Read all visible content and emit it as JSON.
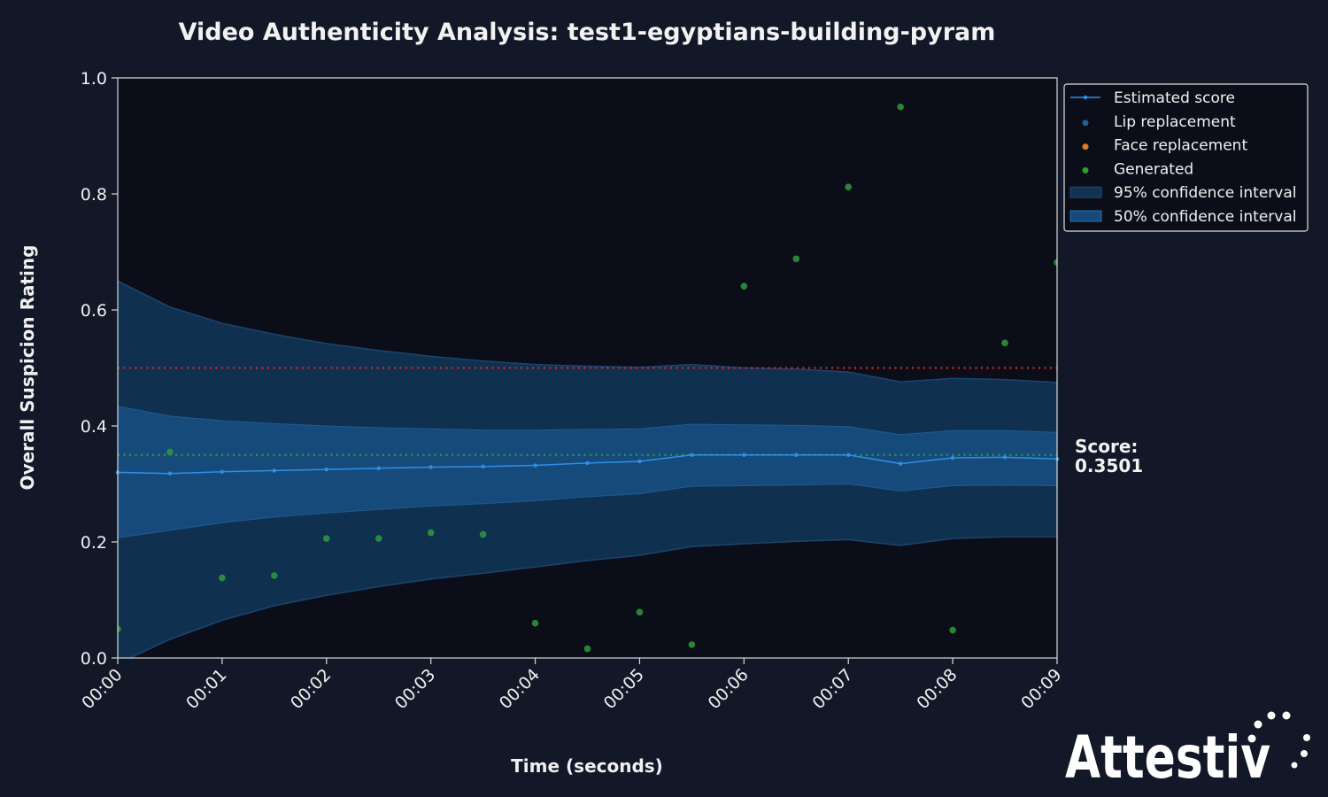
{
  "chart_data": {
    "type": "line",
    "title": "Video Authenticity Analysis: test1-egyptians-building-pyram",
    "xlabel": "Time (seconds)",
    "ylabel": "Overall Suspicion Rating",
    "xlim": [
      0,
      9
    ],
    "ylim": [
      0,
      1.0
    ],
    "x_tick_values": [
      0,
      1,
      2,
      3,
      4,
      5,
      6,
      7,
      8,
      9
    ],
    "x_tick_labels": [
      "00:00",
      "00:01",
      "00:02",
      "00:03",
      "00:04",
      "00:05",
      "00:06",
      "00:07",
      "00:08",
      "00:09"
    ],
    "y_tick_values": [
      0,
      0.2,
      0.4,
      0.6,
      0.8,
      1.0
    ],
    "y_tick_labels": [
      "0.0",
      "0.2",
      "0.4",
      "0.6",
      "0.8",
      "1.0"
    ],
    "x": [
      0,
      0.5,
      1,
      1.5,
      2,
      2.5,
      3,
      3.5,
      4,
      4.5,
      5,
      5.5,
      6,
      6.5,
      7,
      7.5,
      8,
      8.5,
      9
    ],
    "estimated_score": [
      0.32,
      0.318,
      0.321,
      0.323,
      0.325,
      0.327,
      0.329,
      0.33,
      0.332,
      0.336,
      0.339,
      0.35,
      0.35,
      0.35,
      0.35,
      0.335,
      0.345,
      0.346,
      0.343
    ],
    "ci95_upper": [
      0.65,
      0.605,
      0.577,
      0.558,
      0.542,
      0.53,
      0.52,
      0.512,
      0.506,
      0.503,
      0.501,
      0.506,
      0.5,
      0.498,
      0.493,
      0.476,
      0.482,
      0.48,
      0.475
    ],
    "ci95_lower": [
      -0.01,
      0.032,
      0.065,
      0.09,
      0.108,
      0.123,
      0.136,
      0.146,
      0.157,
      0.168,
      0.177,
      0.192,
      0.197,
      0.201,
      0.204,
      0.194,
      0.206,
      0.209,
      0.209
    ],
    "ci50_upper": [
      0.434,
      0.417,
      0.409,
      0.404,
      0.4,
      0.397,
      0.395,
      0.393,
      0.393,
      0.394,
      0.395,
      0.403,
      0.402,
      0.401,
      0.399,
      0.385,
      0.392,
      0.392,
      0.389
    ],
    "ci50_lower": [
      0.207,
      0.22,
      0.233,
      0.243,
      0.25,
      0.256,
      0.262,
      0.266,
      0.271,
      0.278,
      0.283,
      0.296,
      0.297,
      0.298,
      0.3,
      0.288,
      0.297,
      0.298,
      0.297
    ],
    "generated_points": {
      "x": [
        0,
        0.5,
        1,
        1.5,
        2,
        2.5,
        3,
        3.5,
        4,
        4.5,
        5,
        5.5,
        6,
        6.5,
        7,
        7.5,
        8,
        8.5,
        9
      ],
      "y": [
        0.05,
        0.355,
        0.138,
        0.142,
        0.206,
        0.206,
        0.216,
        0.213,
        0.06,
        0.016,
        0.079,
        0.023,
        0.641,
        0.688,
        0.812,
        0.95,
        0.048,
        0.543,
        0.682
      ]
    },
    "reference_lines": [
      {
        "y": 0.5,
        "color": "#d62728",
        "style": "dotted"
      },
      {
        "y": 0.35,
        "color": "#2ca02c",
        "style": "dotted"
      }
    ],
    "legend": {
      "placement": "top-right outside",
      "entries": [
        {
          "label": "Estimated score",
          "kind": "line-marker",
          "color": "#2f8fe6"
        },
        {
          "label": "Lip replacement",
          "kind": "dot",
          "color": "#1f5f99"
        },
        {
          "label": "Face replacement",
          "kind": "dot",
          "color": "#e07b1c"
        },
        {
          "label": "Generated",
          "kind": "dot",
          "color": "#2ca02c"
        },
        {
          "label": "95% confidence interval",
          "kind": "patch",
          "color": "#123254",
          "edge": "#1a4a7a"
        },
        {
          "label": "50% confidence interval",
          "kind": "patch",
          "color": "#174a7c",
          "edge": "#2a6fb0"
        }
      ]
    },
    "score_label": "Score:",
    "score_value": "0.3501",
    "grid": false
  },
  "brand": {
    "name": "Attestiv"
  },
  "colors": {
    "page_bg": "#121828",
    "plot_bg": "#0b0e18",
    "axis": "#d8d8d8",
    "ci95": "#10304f",
    "ci50": "#164a7b",
    "score_line": "#2f8fe6",
    "generated": "#2e9a3a"
  }
}
